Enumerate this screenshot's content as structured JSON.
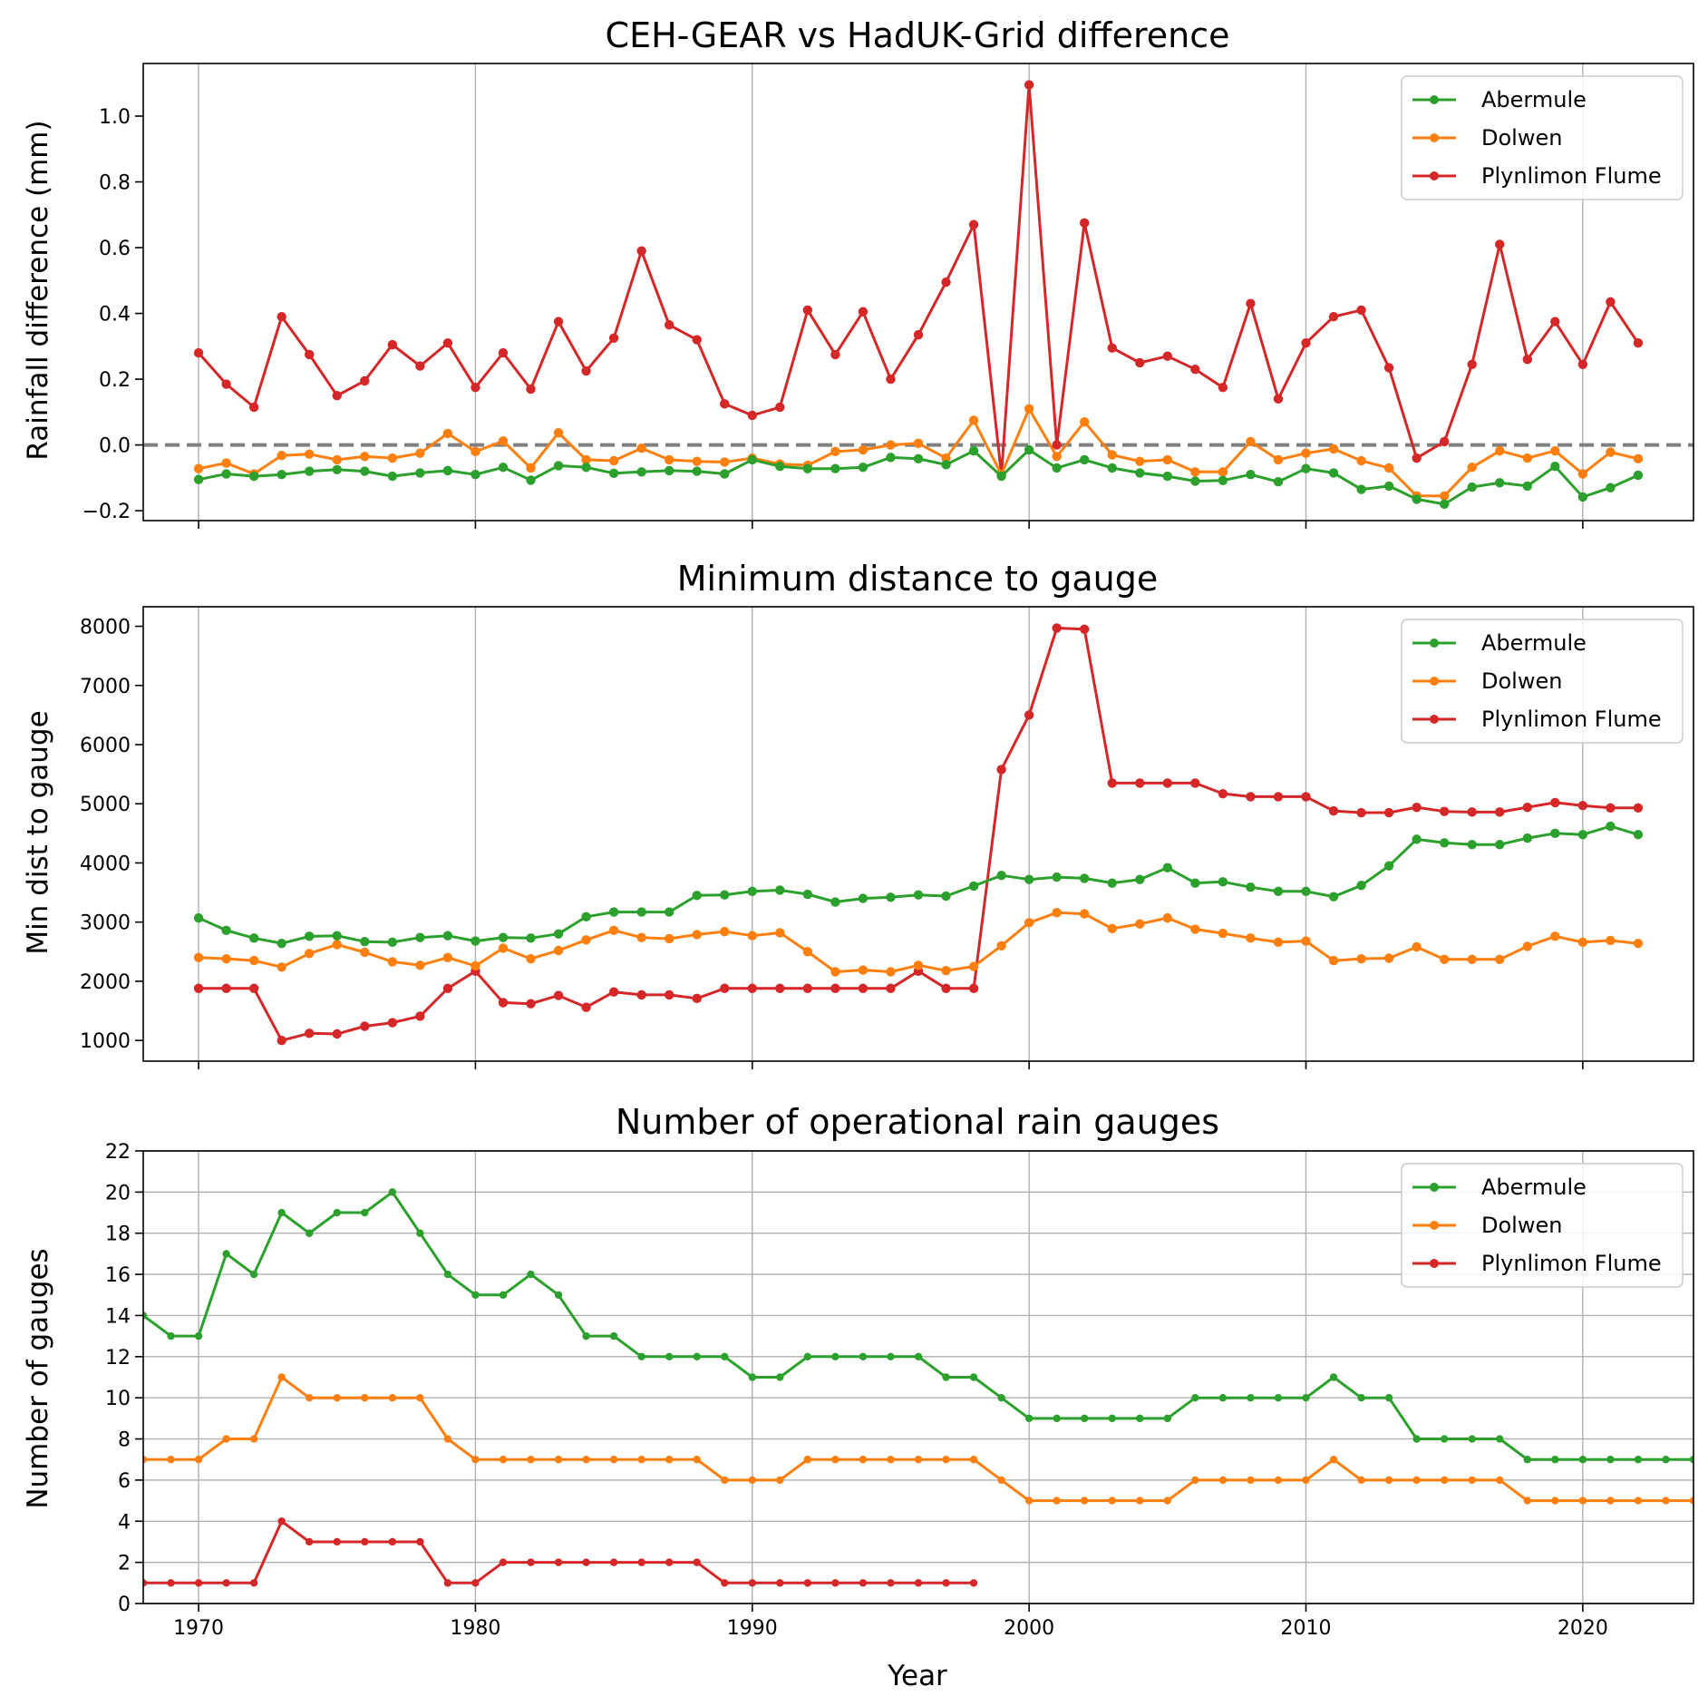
{
  "figure": {
    "xlabel": "Year"
  },
  "colors": {
    "Abermule": "#2ca02c",
    "Dolwen": "#ff7f0e",
    "Plynlimon Flume": "#d62728",
    "zero_line": "#808080"
  },
  "chart_data": [
    {
      "type": "line",
      "title": "CEH-GEAR vs HadUK-Grid difference",
      "xlabel": "",
      "ylabel": "Rainfall difference (mm)",
      "xlim": [
        1968,
        2024
      ],
      "ylim": [
        -0.23,
        1.16
      ],
      "xticks": [
        1970,
        1980,
        1990,
        2000,
        2010,
        2020
      ],
      "yticks": [
        -0.2,
        0.0,
        0.2,
        0.4,
        0.6,
        0.8,
        1.0
      ],
      "ytick_labels": [
        "−0.2",
        "0.0",
        "0.2",
        "0.4",
        "0.6",
        "0.8",
        "1.0"
      ],
      "grid": "x",
      "reference_line": 0.0,
      "legend_position": "top-right",
      "x": [
        1970,
        1971,
        1972,
        1973,
        1974,
        1975,
        1976,
        1977,
        1978,
        1979,
        1980,
        1981,
        1982,
        1983,
        1984,
        1985,
        1986,
        1987,
        1988,
        1989,
        1990,
        1991,
        1992,
        1993,
        1994,
        1995,
        1996,
        1997,
        1998,
        1999,
        2000,
        2001,
        2002,
        2003,
        2004,
        2005,
        2006,
        2007,
        2008,
        2009,
        2010,
        2011,
        2012,
        2013,
        2014,
        2015,
        2016,
        2017,
        2018,
        2019,
        2020,
        2021,
        2022
      ],
      "series": [
        {
          "name": "Abermule",
          "values": [
            -0.105,
            -0.088,
            -0.095,
            -0.09,
            -0.08,
            -0.075,
            -0.08,
            -0.095,
            -0.085,
            -0.078,
            -0.09,
            -0.068,
            -0.107,
            -0.063,
            -0.068,
            -0.086,
            -0.082,
            -0.078,
            -0.08,
            -0.088,
            -0.045,
            -0.065,
            -0.072,
            -0.072,
            -0.068,
            -0.038,
            -0.042,
            -0.06,
            -0.018,
            -0.095,
            -0.015,
            -0.07,
            -0.045,
            -0.07,
            -0.085,
            -0.095,
            -0.11,
            -0.108,
            -0.09,
            -0.112,
            -0.072,
            -0.085,
            -0.135,
            -0.125,
            -0.165,
            -0.18,
            -0.128,
            -0.115,
            -0.125,
            -0.065,
            -0.158,
            -0.13,
            -0.092
          ]
        },
        {
          "name": "Dolwen",
          "values": [
            -0.072,
            -0.055,
            -0.088,
            -0.032,
            -0.028,
            -0.045,
            -0.035,
            -0.04,
            -0.025,
            0.035,
            -0.02,
            0.012,
            -0.07,
            0.037,
            -0.045,
            -0.048,
            -0.01,
            -0.045,
            -0.05,
            -0.052,
            -0.04,
            -0.058,
            -0.062,
            -0.02,
            -0.015,
            0.0,
            0.005,
            -0.04,
            0.075,
            -0.09,
            0.11,
            -0.035,
            0.07,
            -0.03,
            -0.05,
            -0.045,
            -0.082,
            -0.082,
            0.01,
            -0.045,
            -0.025,
            -0.012,
            -0.048,
            -0.07,
            -0.155,
            -0.155,
            -0.068,
            -0.018,
            -0.04,
            -0.018,
            -0.088,
            -0.022,
            -0.042
          ]
        },
        {
          "name": "Plynlimon Flume",
          "values": [
            0.28,
            0.185,
            0.115,
            0.39,
            0.275,
            0.15,
            0.195,
            0.305,
            0.24,
            0.31,
            0.175,
            0.28,
            0.17,
            0.375,
            0.225,
            0.325,
            0.59,
            0.365,
            0.32,
            0.125,
            0.09,
            0.115,
            0.41,
            0.275,
            0.405,
            0.2,
            0.335,
            0.495,
            0.67,
            -0.09,
            1.095,
            0.0,
            0.675,
            0.295,
            0.25,
            0.27,
            0.23,
            0.175,
            0.43,
            0.14,
            0.31,
            0.39,
            0.41,
            0.235,
            -0.04,
            0.01,
            0.245,
            0.61,
            0.26,
            0.375,
            0.245,
            0.435,
            0.31
          ]
        }
      ]
    },
    {
      "type": "line",
      "title": "Minimum distance to gauge",
      "xlabel": "",
      "ylabel": "Min dist to gauge",
      "xlim": [
        1968,
        2024
      ],
      "ylim": [
        650,
        8330
      ],
      "xticks": [
        1970,
        1980,
        1990,
        2000,
        2010,
        2020
      ],
      "yticks": [
        1000,
        2000,
        3000,
        4000,
        5000,
        6000,
        7000,
        8000
      ],
      "ytick_labels": [
        "1000",
        "2000",
        "3000",
        "4000",
        "5000",
        "6000",
        "7000",
        "8000"
      ],
      "grid": "x",
      "legend_position": "top-right",
      "x": [
        1970,
        1971,
        1972,
        1973,
        1974,
        1975,
        1976,
        1977,
        1978,
        1979,
        1980,
        1981,
        1982,
        1983,
        1984,
        1985,
        1986,
        1987,
        1988,
        1989,
        1990,
        1991,
        1992,
        1993,
        1994,
        1995,
        1996,
        1997,
        1998,
        1999,
        2000,
        2001,
        2002,
        2003,
        2004,
        2005,
        2006,
        2007,
        2008,
        2009,
        2010,
        2011,
        2012,
        2013,
        2014,
        2015,
        2016,
        2017,
        2018,
        2019,
        2020,
        2021,
        2022
      ],
      "series": [
        {
          "name": "Abermule",
          "values": [
            3070,
            2860,
            2730,
            2640,
            2760,
            2770,
            2670,
            2660,
            2740,
            2770,
            2680,
            2740,
            2730,
            2800,
            3090,
            3170,
            3170,
            3170,
            3450,
            3460,
            3520,
            3540,
            3470,
            3340,
            3400,
            3420,
            3460,
            3440,
            3610,
            3790,
            3720,
            3760,
            3740,
            3660,
            3720,
            3920,
            3660,
            3680,
            3590,
            3520,
            3520,
            3430,
            3620,
            3950,
            4400,
            4340,
            4310,
            4310,
            4420,
            4500,
            4480,
            4620,
            4480
          ]
        },
        {
          "name": "Dolwen",
          "values": [
            2400,
            2380,
            2350,
            2240,
            2470,
            2620,
            2490,
            2330,
            2270,
            2400,
            2260,
            2560,
            2380,
            2520,
            2700,
            2860,
            2740,
            2720,
            2790,
            2840,
            2770,
            2820,
            2500,
            2160,
            2190,
            2160,
            2270,
            2180,
            2250,
            2600,
            2990,
            3160,
            3140,
            2890,
            2970,
            3070,
            2880,
            2810,
            2730,
            2660,
            2680,
            2350,
            2380,
            2390,
            2580,
            2370,
            2370,
            2370,
            2590,
            2760,
            2660,
            2690,
            2640
          ]
        },
        {
          "name": "Plynlimon Flume",
          "values": [
            1880,
            1880,
            1880,
            1000,
            1120,
            1110,
            1240,
            1300,
            1410,
            1880,
            2170,
            1640,
            1620,
            1760,
            1560,
            1820,
            1770,
            1770,
            1710,
            1880,
            1880,
            1880,
            1880,
            1880,
            1880,
            1880,
            2170,
            1880,
            1880,
            5580,
            6500,
            7970,
            7950,
            5350,
            5350,
            5350,
            5350,
            5170,
            5120,
            5120,
            5120,
            4880,
            4850,
            4850,
            4940,
            4870,
            4860,
            4860,
            4940,
            5020,
            4970,
            4930,
            4930
          ]
        }
      ]
    },
    {
      "type": "line",
      "title": "Number of operational rain gauges",
      "xlabel": "Year",
      "ylabel": "Number of gauges",
      "xlim": [
        1968,
        2024
      ],
      "ylim": [
        0,
        22
      ],
      "xticks": [
        1970,
        1980,
        1990,
        2000,
        2010,
        2020
      ],
      "yticks": [
        0,
        2,
        4,
        6,
        8,
        10,
        12,
        14,
        16,
        18,
        20,
        22
      ],
      "ytick_labels": [
        "0",
        "2",
        "4",
        "6",
        "8",
        "10",
        "12",
        "14",
        "16",
        "18",
        "20",
        "22"
      ],
      "grid": "both",
      "legend_position": "top-right",
      "series": [
        {
          "name": "Abermule",
          "x": [
            1968,
            1969,
            1970,
            1971,
            1972,
            1973,
            1974,
            1975,
            1976,
            1977,
            1978,
            1979,
            1980,
            1981,
            1982,
            1983,
            1984,
            1985,
            1986,
            1987,
            1988,
            1989,
            1990,
            1991,
            1992,
            1993,
            1994,
            1995,
            1996,
            1997,
            1998,
            1999,
            2000,
            2001,
            2002,
            2003,
            2004,
            2005,
            2006,
            2007,
            2008,
            2009,
            2010,
            2011,
            2012,
            2013,
            2014,
            2015,
            2016,
            2017,
            2018,
            2019,
            2020,
            2021,
            2022,
            2023,
            2024
          ],
          "values": [
            14,
            13,
            13,
            17,
            16,
            19,
            18,
            19,
            19,
            20,
            18,
            16,
            15,
            15,
            16,
            15,
            13,
            13,
            12,
            12,
            12,
            12,
            11,
            11,
            12,
            12,
            12,
            12,
            12,
            11,
            11,
            10,
            9,
            9,
            9,
            9,
            9,
            9,
            10,
            10,
            10,
            10,
            10,
            11,
            10,
            10,
            8,
            8,
            8,
            8,
            7,
            7,
            7,
            7,
            7,
            7,
            7
          ]
        },
        {
          "name": "Dolwen",
          "x": [
            1968,
            1969,
            1970,
            1971,
            1972,
            1973,
            1974,
            1975,
            1976,
            1977,
            1978,
            1979,
            1980,
            1981,
            1982,
            1983,
            1984,
            1985,
            1986,
            1987,
            1988,
            1989,
            1990,
            1991,
            1992,
            1993,
            1994,
            1995,
            1996,
            1997,
            1998,
            1999,
            2000,
            2001,
            2002,
            2003,
            2004,
            2005,
            2006,
            2007,
            2008,
            2009,
            2010,
            2011,
            2012,
            2013,
            2014,
            2015,
            2016,
            2017,
            2018,
            2019,
            2020,
            2021,
            2022,
            2023,
            2024
          ],
          "values": [
            7,
            7,
            7,
            8,
            8,
            11,
            10,
            10,
            10,
            10,
            10,
            8,
            7,
            7,
            7,
            7,
            7,
            7,
            7,
            7,
            7,
            6,
            6,
            6,
            7,
            7,
            7,
            7,
            7,
            7,
            7,
            6,
            5,
            5,
            5,
            5,
            5,
            5,
            6,
            6,
            6,
            6,
            6,
            7,
            6,
            6,
            6,
            6,
            6,
            6,
            5,
            5,
            5,
            5,
            5,
            5,
            5
          ]
        },
        {
          "name": "Plynlimon Flume",
          "x": [
            1968,
            1969,
            1970,
            1971,
            1972,
            1973,
            1974,
            1975,
            1976,
            1977,
            1978,
            1979,
            1980,
            1981,
            1982,
            1983,
            1984,
            1985,
            1986,
            1987,
            1988,
            1989,
            1990,
            1991,
            1992,
            1993,
            1994,
            1995,
            1996,
            1997,
            1998
          ],
          "values": [
            1,
            1,
            1,
            1,
            1,
            4,
            3,
            3,
            3,
            3,
            3,
            1,
            1,
            2,
            2,
            2,
            2,
            2,
            2,
            2,
            2,
            1,
            1,
            1,
            1,
            1,
            1,
            1,
            1,
            1,
            1
          ]
        }
      ]
    }
  ]
}
